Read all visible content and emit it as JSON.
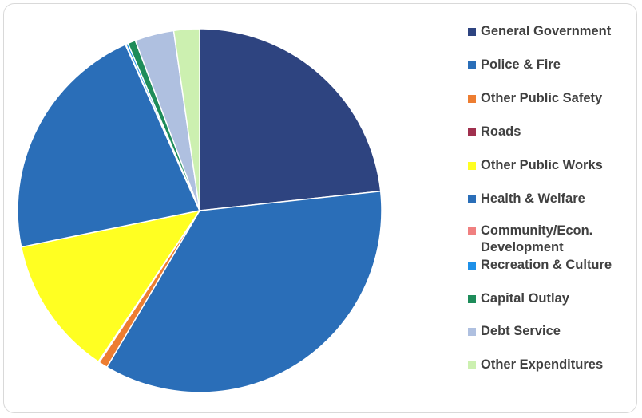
{
  "chart_data": {
    "type": "pie",
    "title": "",
    "categories": [
      "General Government",
      "Police & Fire",
      "Other Public Safety",
      "Roads",
      "Other Public Works",
      "Health & Welfare",
      "Community/Econ. Development",
      "Recreation & Culture",
      "Capital Outlay",
      "Debt Service",
      "Other Expenditures"
    ],
    "values": [
      23.5,
      35.5,
      0.8,
      0.1,
      12.5,
      21.7,
      0.05,
      0.2,
      0.7,
      3.5,
      2.3
    ],
    "unit": "percent (estimated)",
    "colors": [
      "#2E4480",
      "#2A6EB8",
      "#ED7D31",
      "#A0304E",
      "#FFFF22",
      "#2A6EB8",
      "#F08080",
      "#1E90E8",
      "#1E8C5A",
      "#AFC0E0",
      "#CCF0B0"
    ],
    "start_angle_deg": 0,
    "direction": "clockwise",
    "legend_position": "right"
  }
}
